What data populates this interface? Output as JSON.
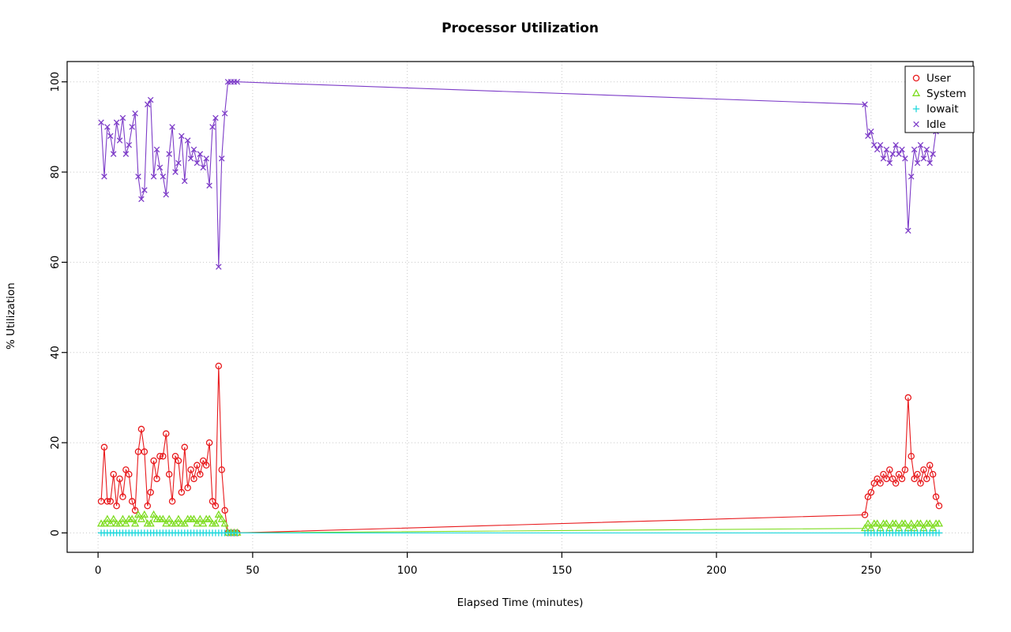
{
  "chart_data": {
    "type": "line",
    "title": "Processor Utilization",
    "xlabel": "Elapsed Time (minutes)",
    "ylabel": "% Utilization",
    "xlim": [
      -10,
      283
    ],
    "ylim": [
      -4.3,
      104.5
    ],
    "xticks": [
      0,
      50,
      100,
      150,
      200,
      250
    ],
    "yticks": [
      0,
      20,
      40,
      60,
      80,
      100
    ],
    "grid": true,
    "grid_style": "dotted",
    "legend_position": "top-right",
    "background": "#ffffff",
    "x": [
      1,
      2,
      3,
      4,
      5,
      6,
      7,
      8,
      9,
      10,
      11,
      12,
      13,
      14,
      15,
      16,
      17,
      18,
      19,
      20,
      21,
      22,
      23,
      24,
      25,
      26,
      27,
      28,
      29,
      30,
      31,
      32,
      33,
      34,
      35,
      36,
      37,
      38,
      39,
      40,
      41,
      42,
      43,
      44,
      45,
      248,
      249,
      250,
      251,
      252,
      253,
      254,
      255,
      256,
      257,
      258,
      259,
      260,
      261,
      262,
      263,
      264,
      265,
      266,
      267,
      268,
      269,
      270,
      271,
      272
    ],
    "series": [
      {
        "name": "User",
        "color": "#e8191c",
        "marker": "circle",
        "y": [
          7,
          19,
          7,
          7,
          13,
          6,
          12,
          8,
          14,
          13,
          7,
          5,
          18,
          23,
          18,
          6,
          9,
          16,
          12,
          17,
          17,
          22,
          13,
          7,
          17,
          16,
          9,
          19,
          10,
          14,
          12,
          15,
          13,
          16,
          15,
          20,
          7,
          6,
          37,
          14,
          5,
          0,
          0,
          0,
          0,
          4,
          8,
          9,
          11,
          12,
          11,
          13,
          12,
          14,
          12,
          11,
          13,
          12,
          14,
          30,
          17,
          12,
          13,
          11,
          14,
          12,
          15,
          13,
          8,
          6
        ]
      },
      {
        "name": "System",
        "color": "#7ddc1f",
        "marker": "triangle",
        "y": [
          2,
          2,
          3,
          2,
          3,
          2,
          2,
          3,
          2,
          3,
          3,
          2,
          4,
          3,
          4,
          2,
          2,
          4,
          3,
          3,
          3,
          2,
          3,
          2,
          2,
          3,
          2,
          2,
          3,
          3,
          3,
          2,
          3,
          2,
          3,
          3,
          2,
          2,
          4,
          3,
          2,
          0,
          0,
          0,
          0,
          1,
          2,
          1,
          2,
          2,
          1,
          2,
          2,
          1,
          2,
          2,
          1,
          2,
          2,
          1,
          2,
          1,
          2,
          2,
          1,
          2,
          2,
          1,
          2,
          2
        ]
      },
      {
        "name": "Iowait",
        "color": "#1fd7dc",
        "marker": "plus",
        "y": [
          0,
          0,
          0,
          0,
          0,
          0,
          0,
          0,
          0,
          0,
          0,
          0,
          0,
          0,
          0,
          0,
          0,
          0,
          0,
          0,
          0,
          0,
          0,
          0,
          0,
          0,
          0,
          0,
          0,
          0,
          0,
          0,
          0,
          0,
          0,
          0,
          0,
          0,
          0,
          0,
          0,
          0,
          0,
          0,
          0,
          0,
          0,
          0,
          0,
          0,
          0,
          0,
          0,
          0,
          0,
          0,
          0,
          0,
          0,
          0,
          0,
          0,
          0,
          0,
          0,
          0,
          0,
          0,
          0,
          0
        ]
      },
      {
        "name": "Idle",
        "color": "#7d3cc8",
        "marker": "x",
        "y": [
          91,
          79,
          90,
          88,
          84,
          91,
          87,
          92,
          84,
          86,
          90,
          93,
          79,
          74,
          76,
          95,
          96,
          79,
          85,
          81,
          79,
          75,
          84,
          90,
          80,
          82,
          88,
          78,
          87,
          83,
          85,
          82,
          84,
          81,
          83,
          77,
          90,
          92,
          59,
          83,
          93,
          100,
          100,
          100,
          100,
          95,
          88,
          89,
          86,
          85,
          86,
          83,
          85,
          82,
          84,
          86,
          84,
          85,
          83,
          67,
          79,
          85,
          82,
          86,
          83,
          85,
          82,
          84,
          89,
          91
        ]
      }
    ]
  }
}
